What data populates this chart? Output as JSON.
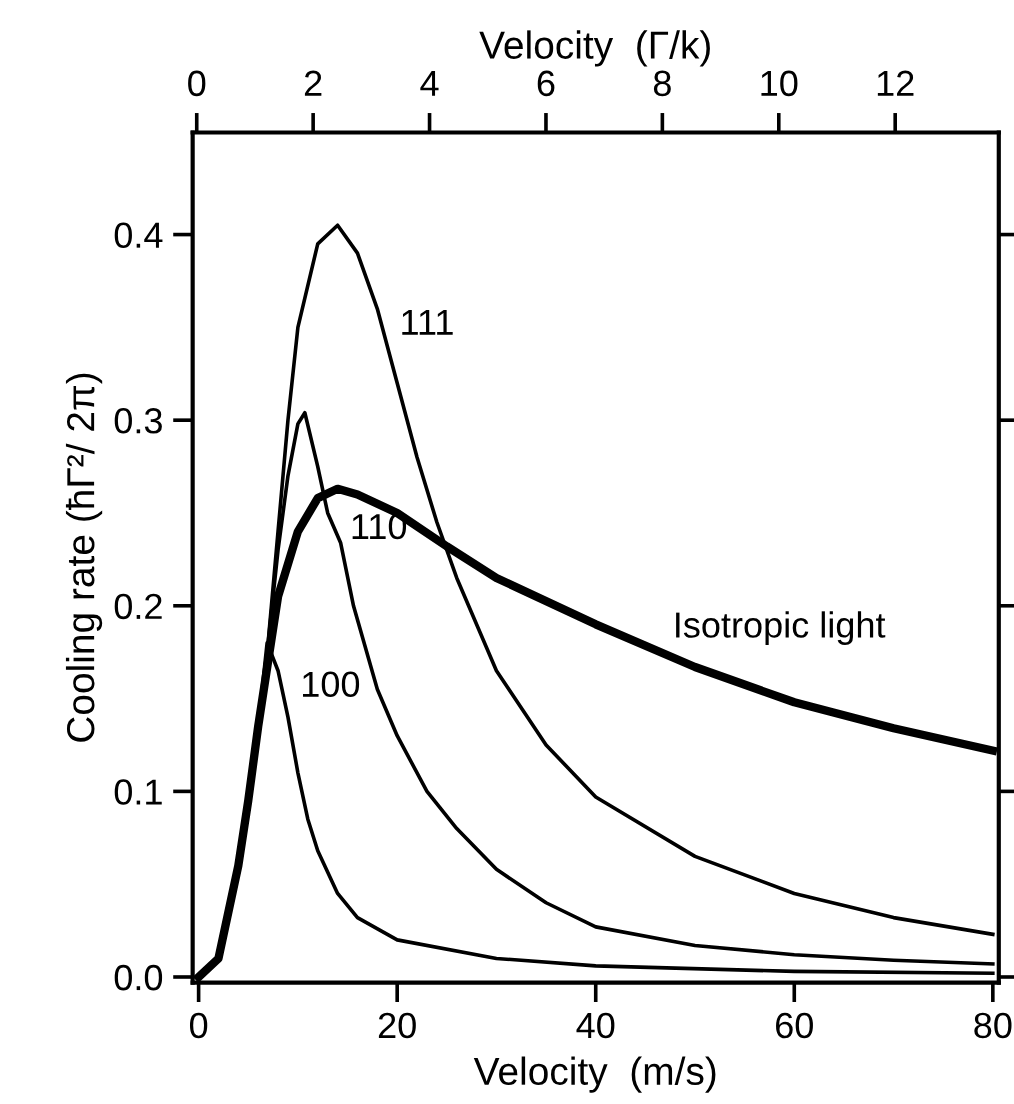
{
  "chart_data": {
    "type": "line",
    "xlabel": "Velocity  (m/s)",
    "x2label": "Velocity  (Γ/k)",
    "ylabel": "Cooling rate (ħΓ²/ 2π)",
    "xlim": [
      -0.6,
      80.6
    ],
    "xticks": [
      0,
      20,
      40,
      60,
      80
    ],
    "x2lim": [
      -0.07,
      13.78
    ],
    "x2ticks": [
      0,
      2,
      4,
      6,
      8,
      10,
      12
    ],
    "ylim": [
      -0.003,
      0.455
    ],
    "yticks": [
      {
        "value": 0,
        "label": "0.0"
      },
      {
        "value": 0.1,
        "label": "0.1"
      },
      {
        "value": 0.2,
        "label": "0.2"
      },
      {
        "value": 0.3,
        "label": "0.3"
      },
      {
        "value": 0.4,
        "label": "0.4"
      }
    ],
    "grid": false,
    "marker": "none",
    "line_style": "solid",
    "series": [
      {
        "name": "Isotropic light",
        "color": "#000000",
        "x": [
          0,
          2,
          4,
          5,
          6,
          7,
          8,
          10,
          12,
          14,
          16,
          20,
          25,
          30,
          40,
          50,
          60,
          70,
          80
        ],
        "values": [
          0,
          0.01,
          0.06,
          0.095,
          0.135,
          0.17,
          0.205,
          0.24,
          0.258,
          0.263,
          0.26,
          0.25,
          0.232,
          0.215,
          0.19,
          0.167,
          0.148,
          0.134,
          0.122
        ]
      },
      {
        "name": "111",
        "color": "#000000",
        "x": [
          0,
          2,
          4,
          6,
          7,
          8,
          9,
          10,
          12,
          14,
          16,
          18,
          20,
          22,
          24,
          26,
          30,
          35,
          40,
          50,
          60,
          70,
          80
        ],
        "values": [
          0,
          0.01,
          0.06,
          0.135,
          0.18,
          0.24,
          0.3,
          0.35,
          0.395,
          0.405,
          0.39,
          0.36,
          0.32,
          0.28,
          0.245,
          0.215,
          0.165,
          0.125,
          0.097,
          0.065,
          0.045,
          0.032,
          0.023
        ]
      },
      {
        "name": "110",
        "color": "#000000",
        "x": [
          0,
          2,
          4,
          6,
          7,
          8,
          9,
          10,
          10.7,
          12,
          13,
          14.3,
          15.6,
          18,
          20,
          23,
          26,
          30,
          35,
          40,
          50,
          60,
          70,
          80
        ],
        "values": [
          0,
          0.01,
          0.06,
          0.135,
          0.18,
          0.23,
          0.27,
          0.298,
          0.304,
          0.275,
          0.25,
          0.234,
          0.2,
          0.155,
          0.13,
          0.1,
          0.08,
          0.058,
          0.04,
          0.027,
          0.017,
          0.012,
          0.009,
          0.007
        ]
      },
      {
        "name": "100",
        "color": "#000000",
        "x": [
          0,
          2,
          4,
          6,
          6.9,
          8,
          9,
          10,
          11,
          12,
          14,
          16,
          20,
          30,
          40,
          60,
          80
        ],
        "values": [
          0,
          0.01,
          0.06,
          0.135,
          0.18,
          0.165,
          0.14,
          0.11,
          0.085,
          0.068,
          0.045,
          0.032,
          0.02,
          0.01,
          0.006,
          0.003,
          0.002
        ]
      }
    ]
  }
}
